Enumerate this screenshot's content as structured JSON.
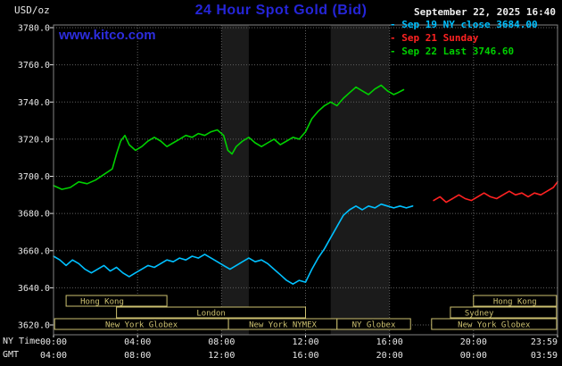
{
  "header": {
    "unit_label": "USD/oz",
    "title": "24 Hour Spot Gold (Bid)",
    "datetime": "September 22, 2025 16:40",
    "watermark": "www.kitco.com"
  },
  "legend": [
    {
      "label": "Sep 19 NY close 3684.00",
      "color": "#00c0ff"
    },
    {
      "label": "Sep 21 Sunday",
      "color": "#ff2222"
    },
    {
      "label": "Sep 22 Last 3746.60",
      "color": "#00d000"
    }
  ],
  "colors": {
    "background": "#000000",
    "title_blue": "#2525d8",
    "watermark_blue": "#2d2dde",
    "text": "#e8e8e8",
    "grid": "#5f5f5f",
    "border": "#828282",
    "session": "#ccc070",
    "band": "#1b1b1b"
  },
  "chart_data": {
    "type": "line",
    "title": "24 Hour Spot Gold (Bid)",
    "unit": "USD/oz",
    "datetime": "September 22, 2025 16:40",
    "x_axis": {
      "name_top": "NY Time",
      "name_bottom": "GMT",
      "range_hours": [
        0,
        24
      ],
      "ticks": [
        {
          "hour": 0,
          "ny": "00:00",
          "gmt": "04:00"
        },
        {
          "hour": 4,
          "ny": "04:00",
          "gmt": "08:00"
        },
        {
          "hour": 8,
          "ny": "08:00",
          "gmt": "12:00"
        },
        {
          "hour": 12,
          "ny": "12:00",
          "gmt": "16:00"
        },
        {
          "hour": 16,
          "ny": "16:00",
          "gmt": "20:00"
        },
        {
          "hour": 20,
          "ny": "20:00",
          "gmt": "00:00"
        },
        {
          "hour": 24,
          "ny": "23:59",
          "gmt": "03:59"
        }
      ]
    },
    "y_axis": {
      "range": [
        3620,
        3780
      ],
      "ticks": [
        {
          "v": 3780,
          "label": "3780.0"
        },
        {
          "v": 3760,
          "label": "3760.0"
        },
        {
          "v": 3740,
          "label": "3740.0"
        },
        {
          "v": 3720,
          "label": "3720.0"
        },
        {
          "v": 3700,
          "label": "3700.0"
        },
        {
          "v": 3680,
          "label": "3680.0"
        },
        {
          "v": 3660,
          "label": "3660.0"
        },
        {
          "v": 3640,
          "label": "3640.0"
        },
        {
          "v": 3620,
          "label": "3620.0"
        }
      ]
    },
    "shaded_bands": [
      {
        "start": 8.0,
        "end": 9.3
      },
      {
        "start": 13.2,
        "end": 16.0
      }
    ],
    "sessions": [
      {
        "label": "Hong Kong",
        "row": 0,
        "start": 0.6,
        "end": 5.4,
        "align": "left"
      },
      {
        "label": "Hong Kong",
        "row": 0,
        "start": 20.0,
        "end": 23.95,
        "align": "center"
      },
      {
        "label": "London",
        "row": 1,
        "start": 3.0,
        "end": 12.0,
        "align": "center"
      },
      {
        "label": "Sydney",
        "row": 1,
        "start": 18.9,
        "end": 23.95,
        "align": "left"
      },
      {
        "label": "New York Globex",
        "row": 2,
        "start": 0.05,
        "end": 8.33,
        "align": "center"
      },
      {
        "label": "New York NYMEX",
        "row": 2,
        "start": 8.33,
        "end": 13.5,
        "align": "center"
      },
      {
        "label": "NY Globex",
        "row": 2,
        "start": 13.5,
        "end": 17.0,
        "align": "center"
      },
      {
        "label": "New York Globex",
        "row": 2,
        "start": 18.0,
        "end": 23.95,
        "align": "center"
      }
    ],
    "series": [
      {
        "id": "sep19",
        "name": "Sep 19 NY close 3684.00",
        "color": "#00c0ff",
        "close": 3684.0,
        "points": [
          [
            0,
            3657
          ],
          [
            0.3,
            3655
          ],
          [
            0.6,
            3652
          ],
          [
            0.9,
            3655
          ],
          [
            1.2,
            3653
          ],
          [
            1.5,
            3650
          ],
          [
            1.8,
            3648
          ],
          [
            2.1,
            3650
          ],
          [
            2.4,
            3652
          ],
          [
            2.7,
            3649
          ],
          [
            3.0,
            3651
          ],
          [
            3.3,
            3648
          ],
          [
            3.6,
            3646
          ],
          [
            3.9,
            3648
          ],
          [
            4.2,
            3650
          ],
          [
            4.5,
            3652
          ],
          [
            4.8,
            3651
          ],
          [
            5.1,
            3653
          ],
          [
            5.4,
            3655
          ],
          [
            5.7,
            3654
          ],
          [
            6.0,
            3656
          ],
          [
            6.3,
            3655
          ],
          [
            6.6,
            3657
          ],
          [
            6.9,
            3656
          ],
          [
            7.2,
            3658
          ],
          [
            7.5,
            3656
          ],
          [
            7.8,
            3654
          ],
          [
            8.1,
            3652
          ],
          [
            8.4,
            3650
          ],
          [
            8.7,
            3652
          ],
          [
            9.0,
            3654
          ],
          [
            9.3,
            3656
          ],
          [
            9.6,
            3654
          ],
          [
            9.9,
            3655
          ],
          [
            10.2,
            3653
          ],
          [
            10.5,
            3650
          ],
          [
            10.8,
            3647
          ],
          [
            11.1,
            3644
          ],
          [
            11.4,
            3642
          ],
          [
            11.7,
            3644
          ],
          [
            12.0,
            3643
          ],
          [
            12.3,
            3650
          ],
          [
            12.6,
            3656
          ],
          [
            12.9,
            3661
          ],
          [
            13.2,
            3667
          ],
          [
            13.5,
            3673
          ],
          [
            13.8,
            3679
          ],
          [
            14.1,
            3682
          ],
          [
            14.4,
            3684
          ],
          [
            14.7,
            3682
          ],
          [
            15.0,
            3684
          ],
          [
            15.3,
            3683
          ],
          [
            15.6,
            3685
          ],
          [
            15.9,
            3684
          ],
          [
            16.2,
            3683
          ],
          [
            16.5,
            3684
          ],
          [
            16.8,
            3683
          ],
          [
            17.1,
            3684
          ]
        ]
      },
      {
        "id": "sep21",
        "name": "Sep 21 Sunday",
        "color": "#ff2222",
        "points": [
          [
            18.1,
            3687
          ],
          [
            18.4,
            3689
          ],
          [
            18.7,
            3686
          ],
          [
            19.0,
            3688
          ],
          [
            19.3,
            3690
          ],
          [
            19.6,
            3688
          ],
          [
            19.9,
            3687
          ],
          [
            20.2,
            3689
          ],
          [
            20.5,
            3691
          ],
          [
            20.8,
            3689
          ],
          [
            21.1,
            3688
          ],
          [
            21.4,
            3690
          ],
          [
            21.7,
            3692
          ],
          [
            22.0,
            3690
          ],
          [
            22.3,
            3691
          ],
          [
            22.6,
            3689
          ],
          [
            22.9,
            3691
          ],
          [
            23.2,
            3690
          ],
          [
            23.5,
            3692
          ],
          [
            23.8,
            3694
          ],
          [
            24.0,
            3697
          ]
        ]
      },
      {
        "id": "sep22",
        "name": "Sep 22 Last 3746.60",
        "color": "#00d000",
        "last": 3746.6,
        "points": [
          [
            0,
            3695
          ],
          [
            0.4,
            3693
          ],
          [
            0.8,
            3694
          ],
          [
            1.2,
            3697
          ],
          [
            1.6,
            3696
          ],
          [
            2.0,
            3698
          ],
          [
            2.4,
            3701
          ],
          [
            2.8,
            3704
          ],
          [
            3.0,
            3712
          ],
          [
            3.2,
            3719
          ],
          [
            3.4,
            3722
          ],
          [
            3.6,
            3717
          ],
          [
            3.9,
            3714
          ],
          [
            4.2,
            3716
          ],
          [
            4.5,
            3719
          ],
          [
            4.8,
            3721
          ],
          [
            5.1,
            3719
          ],
          [
            5.4,
            3716
          ],
          [
            5.7,
            3718
          ],
          [
            6.0,
            3720
          ],
          [
            6.3,
            3722
          ],
          [
            6.6,
            3721
          ],
          [
            6.9,
            3723
          ],
          [
            7.2,
            3722
          ],
          [
            7.5,
            3724
          ],
          [
            7.8,
            3725
          ],
          [
            8.1,
            3722
          ],
          [
            8.3,
            3714
          ],
          [
            8.5,
            3712
          ],
          [
            8.7,
            3716
          ],
          [
            9.0,
            3719
          ],
          [
            9.3,
            3721
          ],
          [
            9.6,
            3718
          ],
          [
            9.9,
            3716
          ],
          [
            10.2,
            3718
          ],
          [
            10.5,
            3720
          ],
          [
            10.8,
            3717
          ],
          [
            11.1,
            3719
          ],
          [
            11.4,
            3721
          ],
          [
            11.7,
            3720
          ],
          [
            12.0,
            3724
          ],
          [
            12.3,
            3731
          ],
          [
            12.6,
            3735
          ],
          [
            12.9,
            3738
          ],
          [
            13.2,
            3740
          ],
          [
            13.5,
            3738
          ],
          [
            13.8,
            3742
          ],
          [
            14.1,
            3745
          ],
          [
            14.4,
            3748
          ],
          [
            14.7,
            3746
          ],
          [
            15.0,
            3744
          ],
          [
            15.3,
            3747
          ],
          [
            15.6,
            3749
          ],
          [
            15.9,
            3746
          ],
          [
            16.2,
            3744
          ],
          [
            16.4,
            3745
          ],
          [
            16.67,
            3746.6
          ]
        ]
      }
    ]
  }
}
